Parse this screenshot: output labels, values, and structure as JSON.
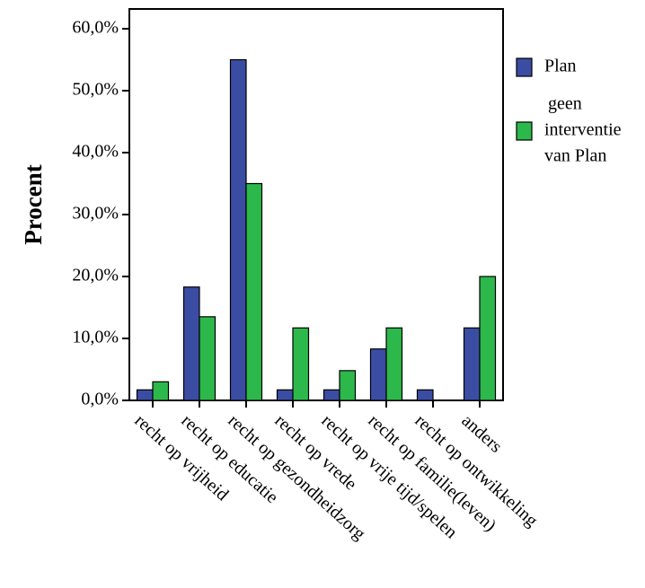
{
  "chart_data": {
    "type": "bar",
    "ylabel": "Procent",
    "xlabel": "",
    "title": "",
    "ylim": [
      0,
      60
    ],
    "yticks": [
      "0,0%",
      "10,0%",
      "20,0%",
      "30,0%",
      "40,0%",
      "50,0%",
      "60,0%"
    ],
    "grid": false,
    "legend_position": "right",
    "categories": [
      "recht op vrijheid",
      "recht op educatie",
      "recht op gezondheidzorg",
      "recht op vrede",
      "recht op vrije tijd/spelen",
      "recht op familie(leven)",
      "recht op ontwikkeling",
      "anders"
    ],
    "series": [
      {
        "name": "Plan",
        "color": "#3b4da3",
        "values": [
          1.7,
          18.3,
          55.0,
          1.7,
          1.7,
          8.3,
          1.7,
          11.7
        ]
      },
      {
        "name_lines": [
          "geen",
          "interventie",
          "van Plan"
        ],
        "color": "#2db84b",
        "values": [
          3.0,
          13.5,
          35.0,
          11.7,
          4.8,
          11.7,
          0.0,
          20.0
        ]
      }
    ]
  }
}
